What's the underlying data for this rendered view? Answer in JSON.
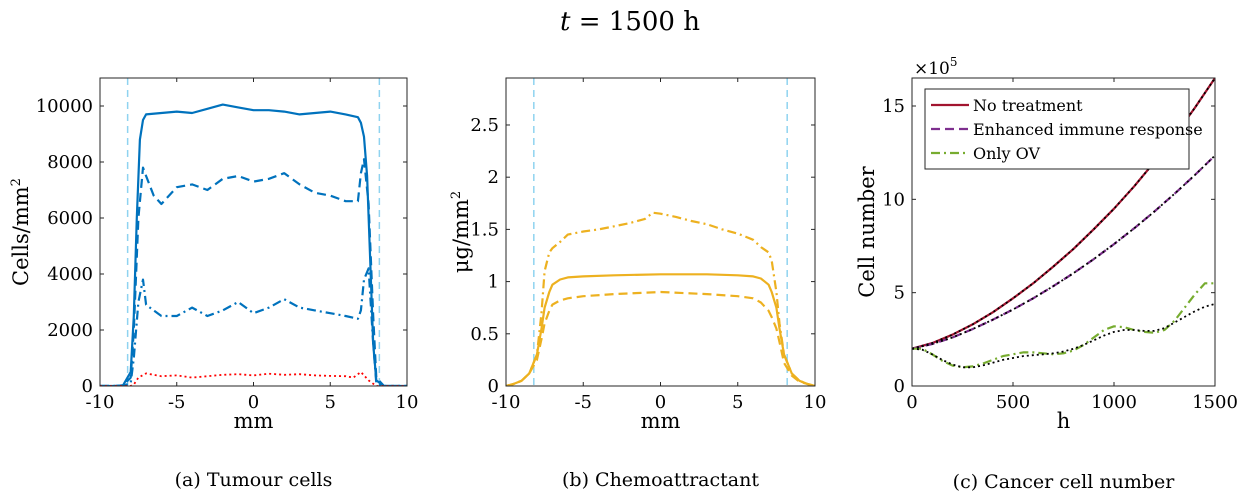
{
  "figure": {
    "title_var": "t",
    "title_eq": " = 1500 h",
    "axis_multiplier_base": "×10",
    "axis_multiplier_exp": "5"
  },
  "chart_data": [
    {
      "type": "line",
      "caption": "(a) Tumour cells",
      "xlabel": "mm",
      "ylabel": "Cells/mm",
      "ylabel_sup": "2",
      "xlim": [
        -10,
        10
      ],
      "ylim": [
        0,
        11000
      ],
      "xticks": [
        -10,
        -5,
        0,
        5,
        10
      ],
      "yticks": [
        0,
        2000,
        4000,
        6000,
        8000,
        10000
      ],
      "vlines": [
        -8.2,
        8.2
      ],
      "series": [
        {
          "style": "solid",
          "color": "#0072BD",
          "x": [
            -10,
            -9,
            -8.5,
            -8,
            -7.8,
            -7.6,
            -7.4,
            -7.2,
            -7,
            -6,
            -5,
            -4,
            -3,
            -2,
            -1,
            0,
            1,
            2,
            3,
            4,
            5,
            6,
            6.8,
            7.0,
            7.2,
            7.4,
            7.6,
            7.8,
            8.0,
            8.5,
            9,
            10
          ],
          "y": [
            0,
            0,
            20,
            500,
            2500,
            6000,
            8800,
            9500,
            9700,
            9750,
            9800,
            9750,
            9900,
            10050,
            9950,
            9850,
            9850,
            9800,
            9700,
            9750,
            9800,
            9700,
            9600,
            9400,
            8900,
            7500,
            4500,
            1500,
            200,
            0,
            0,
            0
          ]
        },
        {
          "style": "dashed",
          "color": "#0072BD",
          "x": [
            -10,
            -9,
            -8.5,
            -8,
            -7.8,
            -7.5,
            -7.2,
            -7,
            -6.5,
            -6,
            -5,
            -4,
            -3,
            -2,
            -1,
            0,
            1,
            2,
            3,
            4,
            5,
            6,
            6.8,
            7.0,
            7.2,
            7.5,
            7.8,
            8.0,
            8.5,
            9,
            10
          ],
          "y": [
            0,
            0,
            20,
            300,
            2000,
            6000,
            7800,
            7500,
            6800,
            6500,
            7100,
            7200,
            7000,
            7400,
            7500,
            7300,
            7400,
            7600,
            7200,
            6900,
            6800,
            6600,
            6600,
            7600,
            8100,
            6500,
            2500,
            300,
            0,
            0,
            0
          ]
        },
        {
          "style": "dashdot",
          "color": "#0072BD",
          "x": [
            -10,
            -9,
            -8.5,
            -8,
            -7.8,
            -7.5,
            -7.2,
            -7,
            -6.5,
            -6,
            -5,
            -4,
            -3,
            -2,
            -1,
            0,
            1,
            2,
            3,
            4,
            5,
            6,
            6.8,
            7.0,
            7.2,
            7.5,
            7.8,
            8.0,
            8.5,
            9,
            10
          ],
          "y": [
            0,
            0,
            10,
            100,
            1000,
            3000,
            3800,
            2900,
            2700,
            2500,
            2500,
            2800,
            2500,
            2700,
            3000,
            2600,
            2800,
            3100,
            2800,
            2700,
            2600,
            2500,
            2400,
            2700,
            3800,
            4200,
            1500,
            100,
            0,
            0,
            0
          ]
        },
        {
          "style": "dotted",
          "color": "#FF0000",
          "x": [
            -10,
            -9,
            -8,
            -7.8,
            -7.5,
            -7,
            -6,
            -5,
            -4,
            -3,
            -2,
            -1,
            0,
            1,
            2,
            3,
            4,
            5,
            6,
            6.5,
            7,
            7.5,
            8,
            9,
            10
          ],
          "y": [
            0,
            0,
            0,
            50,
            300,
            450,
            350,
            380,
            300,
            350,
            400,
            420,
            380,
            440,
            400,
            420,
            380,
            360,
            350,
            300,
            500,
            200,
            0,
            0,
            0
          ]
        }
      ]
    },
    {
      "type": "line",
      "caption": "(b) Chemoattractant",
      "xlabel": "mm",
      "ylabel": "μg/mm",
      "ylabel_sup": "2",
      "xlim": [
        -10,
        10
      ],
      "ylim": [
        0,
        2.95
      ],
      "xticks": [
        -10,
        -5,
        0,
        5,
        10
      ],
      "yticks": [
        0,
        0.5,
        1,
        1.5,
        2,
        2.5
      ],
      "vlines": [
        -8.2,
        8.2
      ],
      "series": [
        {
          "style": "solid",
          "color": "#EDB120",
          "x": [
            -10,
            -9.5,
            -9,
            -8.5,
            -8,
            -7.7,
            -7.5,
            -7.2,
            -7,
            -6.5,
            -6,
            -5,
            -3,
            0,
            3,
            5,
            6,
            6.5,
            7,
            7.2,
            7.5,
            7.7,
            8,
            8.5,
            9,
            9.5,
            10
          ],
          "y": [
            0,
            0.02,
            0.05,
            0.12,
            0.3,
            0.55,
            0.75,
            0.9,
            0.97,
            1.02,
            1.04,
            1.05,
            1.06,
            1.07,
            1.07,
            1.06,
            1.05,
            1.03,
            0.97,
            0.9,
            0.75,
            0.55,
            0.3,
            0.12,
            0.05,
            0.02,
            0
          ]
        },
        {
          "style": "dashed",
          "color": "#EDB120",
          "x": [
            -10,
            -9.5,
            -9,
            -8.5,
            -8,
            -7.7,
            -7.5,
            -7.2,
            -7,
            -6.5,
            -6,
            -5,
            -3,
            0,
            3,
            5,
            6,
            6.5,
            7,
            7.2,
            7.5,
            7.7,
            8,
            8.5,
            9,
            9.5,
            10
          ],
          "y": [
            0,
            0.02,
            0.05,
            0.12,
            0.25,
            0.45,
            0.6,
            0.72,
            0.78,
            0.82,
            0.84,
            0.86,
            0.88,
            0.9,
            0.88,
            0.86,
            0.84,
            0.8,
            0.72,
            0.66,
            0.55,
            0.42,
            0.22,
            0.1,
            0.04,
            0.02,
            0
          ]
        },
        {
          "style": "dashdot",
          "color": "#EDB120",
          "x": [
            -10,
            -9.5,
            -9,
            -8.5,
            -8,
            -7.7,
            -7.5,
            -7.2,
            -7,
            -6.5,
            -6,
            -5,
            -4,
            -3,
            -2,
            -1,
            -0.5,
            0,
            1,
            2,
            3,
            4,
            5,
            6,
            6.5,
            7,
            7.2,
            7.5,
            7.7,
            8,
            8.5,
            9,
            9.5,
            10
          ],
          "y": [
            0,
            0.02,
            0.05,
            0.12,
            0.3,
            0.7,
            1.1,
            1.28,
            1.32,
            1.38,
            1.45,
            1.48,
            1.5,
            1.53,
            1.56,
            1.6,
            1.66,
            1.65,
            1.62,
            1.58,
            1.55,
            1.5,
            1.46,
            1.4,
            1.33,
            1.28,
            1.2,
            0.9,
            0.6,
            0.3,
            0.12,
            0.05,
            0.02,
            0
          ]
        }
      ]
    },
    {
      "type": "line",
      "caption": "(c) Cancer cell number",
      "xlabel": "h",
      "ylabel": "Cell number",
      "xlim": [
        0,
        1500
      ],
      "ylim": [
        0,
        16.5
      ],
      "xticks": [
        0,
        500,
        1000,
        1500
      ],
      "yticks": [
        0,
        5,
        10,
        15
      ],
      "legend": "top-left",
      "series": [
        {
          "name": "No treatment",
          "style": "solid",
          "color": "#A2142F",
          "x": [
            0,
            100,
            200,
            300,
            400,
            500,
            600,
            700,
            800,
            900,
            1000,
            1100,
            1200,
            1300,
            1400,
            1500
          ],
          "y": [
            2.0,
            2.3,
            2.75,
            3.3,
            3.95,
            4.7,
            5.5,
            6.4,
            7.35,
            8.4,
            9.5,
            10.7,
            12.0,
            13.4,
            14.9,
            16.5
          ]
        },
        {
          "name": "Enhanced immune response",
          "style": "dashed",
          "color": "#7E2F8E",
          "x": [
            0,
            100,
            200,
            300,
            400,
            500,
            600,
            700,
            800,
            900,
            1000,
            1100,
            1200,
            1300,
            1400,
            1500
          ],
          "y": [
            2.0,
            2.25,
            2.6,
            3.05,
            3.55,
            4.1,
            4.7,
            5.35,
            6.05,
            6.8,
            7.6,
            8.45,
            9.35,
            10.3,
            11.3,
            12.35
          ]
        },
        {
          "name": "Only OV",
          "style": "dashdot",
          "color": "#77AC30",
          "x": [
            0,
            50,
            100,
            150,
            200,
            250,
            300,
            350,
            400,
            450,
            500,
            550,
            600,
            650,
            700,
            750,
            800,
            850,
            900,
            950,
            1000,
            1050,
            1100,
            1150,
            1200,
            1250,
            1300,
            1350,
            1400,
            1450,
            1500
          ],
          "y": [
            2.0,
            2.0,
            1.7,
            1.35,
            1.1,
            1.0,
            1.05,
            1.2,
            1.4,
            1.6,
            1.7,
            1.8,
            1.8,
            1.75,
            1.7,
            1.75,
            1.9,
            2.2,
            2.6,
            3.0,
            3.2,
            3.15,
            3.0,
            2.9,
            2.85,
            3.0,
            3.5,
            4.2,
            4.9,
            5.5,
            5.5
          ]
        },
        {
          "style": "dotted",
          "color": "#000000",
          "x": [
            0,
            100,
            200,
            300,
            400,
            500,
            600,
            700,
            800,
            900,
            1000,
            1100,
            1200,
            1300,
            1400,
            1500
          ],
          "y": [
            2.0,
            2.3,
            2.75,
            3.3,
            3.95,
            4.7,
            5.5,
            6.4,
            7.35,
            8.4,
            9.5,
            10.7,
            12.0,
            13.4,
            14.9,
            16.5
          ]
        },
        {
          "style": "dotted",
          "color": "#000000",
          "x": [
            0,
            100,
            200,
            300,
            400,
            500,
            600,
            700,
            800,
            900,
            1000,
            1100,
            1200,
            1300,
            1400,
            1500
          ],
          "y": [
            2.0,
            2.25,
            2.6,
            3.05,
            3.55,
            4.1,
            4.7,
            5.35,
            6.05,
            6.8,
            7.6,
            8.45,
            9.35,
            10.3,
            11.3,
            12.35
          ]
        },
        {
          "style": "dotted",
          "color": "#000000",
          "x": [
            0,
            50,
            100,
            150,
            200,
            250,
            300,
            350,
            400,
            450,
            500,
            550,
            600,
            650,
            700,
            750,
            800,
            850,
            900,
            950,
            1000,
            1050,
            1100,
            1150,
            1200,
            1250,
            1300,
            1350,
            1400,
            1450,
            1500
          ],
          "y": [
            2.0,
            1.95,
            1.7,
            1.4,
            1.15,
            1.0,
            1.0,
            1.1,
            1.25,
            1.4,
            1.5,
            1.6,
            1.65,
            1.7,
            1.75,
            1.85,
            2.0,
            2.2,
            2.45,
            2.7,
            2.9,
            3.0,
            3.0,
            2.95,
            2.95,
            3.1,
            3.4,
            3.7,
            4.0,
            4.25,
            4.4
          ]
        }
      ]
    }
  ]
}
